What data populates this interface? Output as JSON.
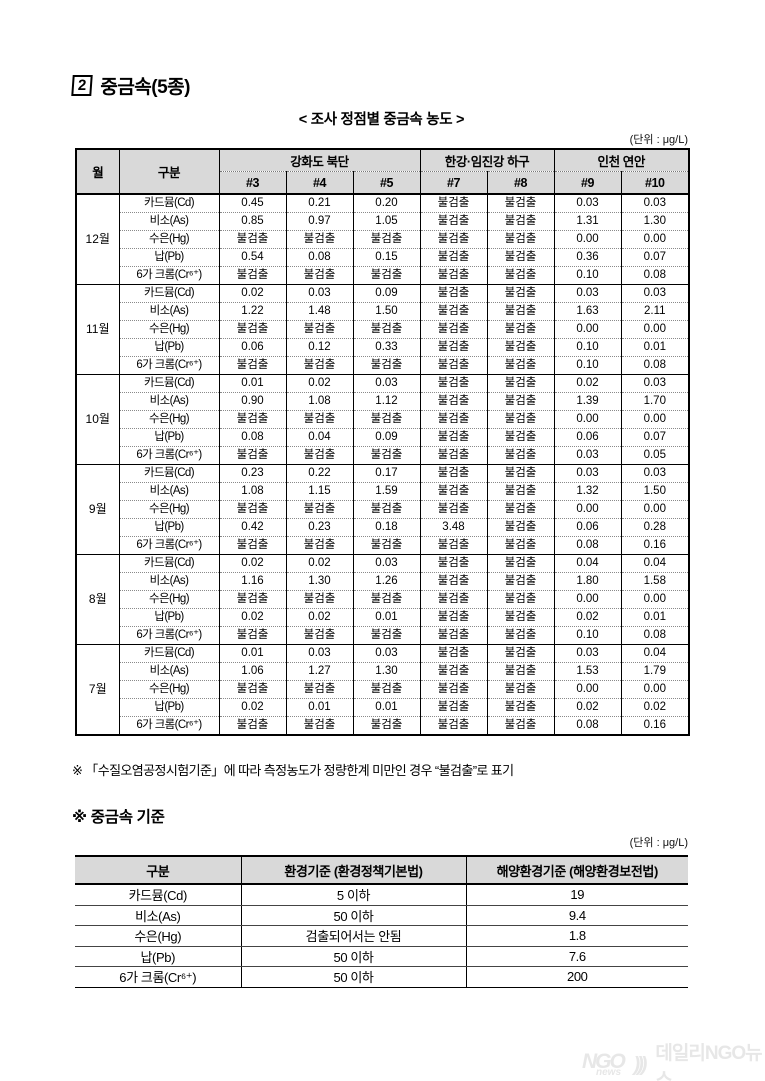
{
  "page": {
    "title_num": "2",
    "title": "중금속(5종)"
  },
  "table1": {
    "title": "< 조사 정점별 중금속 농도 >",
    "unit": "(단위 : μg/L)",
    "headers": {
      "month": "월",
      "category": "구분",
      "groups": [
        {
          "label": "강화도 북단",
          "cols": [
            "#3",
            "#4",
            "#5"
          ]
        },
        {
          "label": "한강·임진강 하구",
          "cols": [
            "#7",
            "#8"
          ]
        },
        {
          "label": "인천 연안",
          "cols": [
            "#9",
            "#10"
          ]
        }
      ]
    },
    "metals": [
      "카드뮴(Cd)",
      "비소(As)",
      "수은(Hg)",
      "납(Pb)",
      "6가 크롬(Cr⁶⁺)"
    ],
    "months": [
      {
        "month": "12월",
        "rows": [
          [
            "0.45",
            "0.21",
            "0.20",
            "불검출",
            "불검출",
            "0.03",
            "0.03"
          ],
          [
            "0.85",
            "0.97",
            "1.05",
            "불검출",
            "불검출",
            "1.31",
            "1.30"
          ],
          [
            "불검출",
            "불검출",
            "불검출",
            "불검출",
            "불검출",
            "0.00",
            "0.00"
          ],
          [
            "0.54",
            "0.08",
            "0.15",
            "불검출",
            "불검출",
            "0.36",
            "0.07"
          ],
          [
            "불검출",
            "불검출",
            "불검출",
            "불검출",
            "불검출",
            "0.10",
            "0.08"
          ]
        ]
      },
      {
        "month": "11월",
        "rows": [
          [
            "0.02",
            "0.03",
            "0.09",
            "불검출",
            "불검출",
            "0.03",
            "0.03"
          ],
          [
            "1.22",
            "1.48",
            "1.50",
            "불검출",
            "불검출",
            "1.63",
            "2.11"
          ],
          [
            "불검출",
            "불검출",
            "불검출",
            "불검출",
            "불검출",
            "0.00",
            "0.00"
          ],
          [
            "0.06",
            "0.12",
            "0.33",
            "불검출",
            "불검출",
            "0.10",
            "0.01"
          ],
          [
            "불검출",
            "불검출",
            "불검출",
            "불검출",
            "불검출",
            "0.10",
            "0.08"
          ]
        ]
      },
      {
        "month": "10월",
        "rows": [
          [
            "0.01",
            "0.02",
            "0.03",
            "불검출",
            "불검출",
            "0.02",
            "0.03"
          ],
          [
            "0.90",
            "1.08",
            "1.12",
            "불검출",
            "불검출",
            "1.39",
            "1.70"
          ],
          [
            "불검출",
            "불검출",
            "불검출",
            "불검출",
            "불검출",
            "0.00",
            "0.00"
          ],
          [
            "0.08",
            "0.04",
            "0.09",
            "불검출",
            "불검출",
            "0.06",
            "0.07"
          ],
          [
            "불검출",
            "불검출",
            "불검출",
            "불검출",
            "불검출",
            "0.03",
            "0.05"
          ]
        ]
      },
      {
        "month": "9월",
        "rows": [
          [
            "0.23",
            "0.22",
            "0.17",
            "불검출",
            "불검출",
            "0.03",
            "0.03"
          ],
          [
            "1.08",
            "1.15",
            "1.59",
            "불검출",
            "불검출",
            "1.32",
            "1.50"
          ],
          [
            "불검출",
            "불검출",
            "불검출",
            "불검출",
            "불검출",
            "0.00",
            "0.00"
          ],
          [
            "0.42",
            "0.23",
            "0.18",
            "3.48",
            "불검출",
            "0.06",
            "0.28"
          ],
          [
            "불검출",
            "불검출",
            "불검출",
            "불검출",
            "불검출",
            "0.08",
            "0.16"
          ]
        ]
      },
      {
        "month": "8월",
        "rows": [
          [
            "0.02",
            "0.02",
            "0.03",
            "불검출",
            "불검출",
            "0.04",
            "0.04"
          ],
          [
            "1.16",
            "1.30",
            "1.26",
            "불검출",
            "불검출",
            "1.80",
            "1.58"
          ],
          [
            "불검출",
            "불검출",
            "불검출",
            "불검출",
            "불검출",
            "0.00",
            "0.00"
          ],
          [
            "0.02",
            "0.02",
            "0.01",
            "불검출",
            "불검출",
            "0.02",
            "0.01"
          ],
          [
            "불검출",
            "불검출",
            "불검출",
            "불검출",
            "불검출",
            "0.10",
            "0.08"
          ]
        ]
      },
      {
        "month": "7월",
        "rows": [
          [
            "0.01",
            "0.03",
            "0.03",
            "불검출",
            "불검출",
            "0.03",
            "0.04"
          ],
          [
            "1.06",
            "1.27",
            "1.30",
            "불검출",
            "불검출",
            "1.53",
            "1.79"
          ],
          [
            "불검출",
            "불검출",
            "불검출",
            "불검출",
            "불검출",
            "0.00",
            "0.00"
          ],
          [
            "0.02",
            "0.01",
            "0.01",
            "불검출",
            "불검출",
            "0.02",
            "0.02"
          ],
          [
            "불검출",
            "불검출",
            "불검출",
            "불검출",
            "불검출",
            "0.08",
            "0.16"
          ]
        ]
      }
    ]
  },
  "note": "※ 「수질오염공정시험기준」에 따라 측정농도가 정량한계 미만인 경우 “불검출”로 표기",
  "section2": {
    "heading": "※  중금속 기준",
    "unit": "(단위 : μg/L)",
    "table": {
      "headers": [
        "구분",
        "환경기준 (환경정책기본법)",
        "해양환경기준 (해양환경보전법)"
      ],
      "rows": [
        [
          "카드뮴(Cd)",
          "5 이하",
          "19"
        ],
        [
          "비소(As)",
          "50 이하",
          "9.4"
        ],
        [
          "수은(Hg)",
          "검출되어서는 안됨",
          "1.8"
        ],
        [
          "납(Pb)",
          "50 이하",
          "7.6"
        ],
        [
          "6가 크롬(Cr⁶⁺)",
          "50 이하",
          "200"
        ]
      ]
    }
  },
  "footer": {
    "logo_ngo": "NGO",
    "logo_news": "news",
    "logo_arcs": ")))",
    "logo_label": "데일리NGO뉴스"
  }
}
